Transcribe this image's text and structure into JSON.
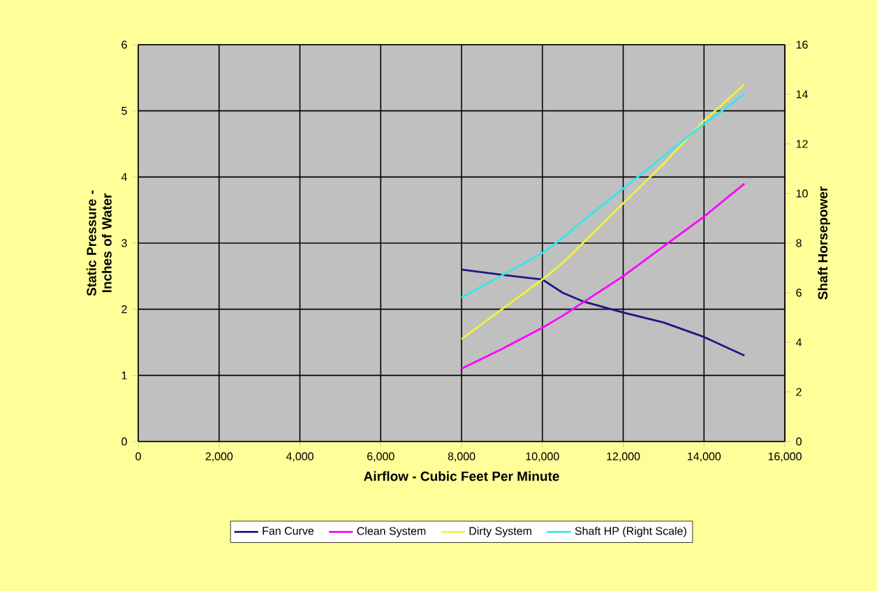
{
  "chart_data": {
    "type": "line",
    "xlabel": "Airflow - Cubic Feet Per Minute",
    "ylabel": "Static Pressure - Inches of Water",
    "y2label": "Shaft Horsepower",
    "x": [
      8000,
      9000,
      10000,
      10500,
      11000,
      12000,
      13000,
      14000,
      15000
    ],
    "series": [
      {
        "name": "Fan Curve",
        "color": "#1a1a80",
        "values": [
          2.6,
          2.52,
          2.45,
          2.25,
          2.12,
          1.95,
          1.8,
          1.58,
          1.3
        ]
      },
      {
        "name": "Clean System",
        "color": "#ff00ff",
        "values": [
          1.1,
          1.4,
          1.72,
          1.9,
          2.1,
          2.5,
          2.95,
          3.4,
          3.9
        ]
      },
      {
        "name": "Dirty System",
        "color": "#f2f23a",
        "values": [
          1.55,
          2.0,
          2.45,
          2.7,
          3.0,
          3.6,
          4.2,
          4.85,
          5.4
        ]
      },
      {
        "name": "Shaft HP (Right Scale)",
        "color": "#33e6f0",
        "axis": "y2",
        "values": [
          5.8,
          6.7,
          7.6,
          8.2,
          8.9,
          10.2,
          11.5,
          12.8,
          14.0
        ]
      }
    ],
    "xlim": [
      0,
      16000
    ],
    "xticks": [
      0,
      {
        "value": 2000,
        "label": "2,000"
      },
      {
        "value": 4000,
        "label": "4,000"
      },
      {
        "value": 6000,
        "label": "6,000"
      },
      {
        "value": 8000,
        "label": "8,000"
      },
      {
        "value": 10000,
        "label": "10,000"
      },
      {
        "value": 12000,
        "label": "12,000"
      },
      {
        "value": 14000,
        "label": "14,000"
      },
      {
        "value": 16000,
        "label": "16,000"
      }
    ],
    "ylim": [
      0,
      6
    ],
    "yticks": [
      0,
      1,
      2,
      3,
      4,
      5,
      6
    ],
    "y2lim": [
      0,
      16
    ],
    "y2ticks": [
      0,
      2,
      4,
      6,
      8,
      10,
      12,
      14,
      16
    ],
    "grid": true,
    "legend": "bottom"
  }
}
